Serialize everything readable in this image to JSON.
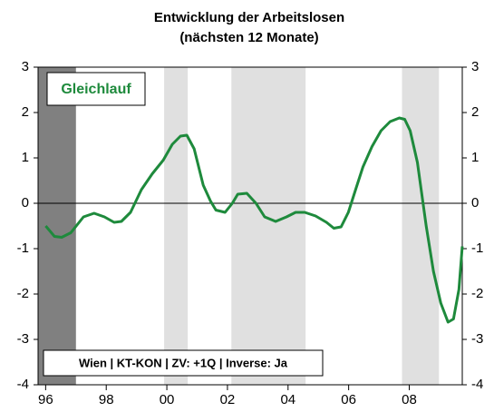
{
  "chart_data": {
    "type": "line",
    "title": "Entwicklung der Arbeitslosen",
    "subtitle": "(nächsten 12 Monate)",
    "annotations": [
      "Gleichlauf",
      "Wien | KT-KON | ZV: +1Q | Inverse: Ja"
    ],
    "xlim": [
      1995.75,
      2009.75
    ],
    "xticks": [
      {
        "value": 1996,
        "label": "96"
      },
      {
        "value": 1998,
        "label": "98"
      },
      {
        "value": 2000,
        "label": "00"
      },
      {
        "value": 2002,
        "label": "02"
      },
      {
        "value": 2004,
        "label": "04"
      },
      {
        "value": 2006,
        "label": "06"
      },
      {
        "value": 2008,
        "label": "08"
      }
    ],
    "ylim": [
      -4,
      3
    ],
    "yticks": [
      -4,
      -3,
      -2,
      -1,
      0,
      1,
      2,
      3
    ],
    "y2lim": [
      -4,
      3
    ],
    "y2ticks": [
      -4,
      -3,
      -2,
      -1,
      0,
      1,
      2,
      3
    ],
    "shaded_periods": [
      {
        "start": 1995.75,
        "end": 1997.0,
        "color": "#808080"
      },
      {
        "start": 1999.91,
        "end": 2000.69,
        "color": "#e0e0e0"
      },
      {
        "start": 2002.13,
        "end": 2004.58,
        "color": "#e0e0e0"
      },
      {
        "start": 2007.76,
        "end": 2008.98,
        "color": "#e0e0e0"
      }
    ],
    "series": [
      {
        "color": "#1e8a3c",
        "x": [
          1996.0,
          1996.29,
          1996.53,
          1996.83,
          1997.25,
          1997.6,
          1997.94,
          1998.26,
          1998.5,
          1998.8,
          1999.16,
          1999.52,
          1999.88,
          2000.18,
          2000.45,
          2000.66,
          2000.9,
          2001.2,
          2001.44,
          2001.62,
          2001.92,
          2002.16,
          2002.34,
          2002.64,
          2002.94,
          2003.23,
          2003.59,
          2003.95,
          2004.25,
          2004.55,
          2004.91,
          2005.27,
          2005.51,
          2005.75,
          2005.99,
          2006.23,
          2006.47,
          2006.77,
          2007.07,
          2007.37,
          2007.67,
          2007.85,
          2008.03,
          2008.27,
          2008.56,
          2008.8,
          2009.04,
          2009.28,
          2009.46,
          2009.64,
          2009.75
        ],
        "values": [
          -0.5,
          -0.73,
          -0.75,
          -0.65,
          -0.3,
          -0.22,
          -0.3,
          -0.42,
          -0.4,
          -0.2,
          0.3,
          0.65,
          0.95,
          1.3,
          1.48,
          1.5,
          1.2,
          0.4,
          0.05,
          -0.15,
          -0.2,
          0.0,
          0.2,
          0.22,
          0.0,
          -0.3,
          -0.4,
          -0.3,
          -0.2,
          -0.2,
          -0.28,
          -0.42,
          -0.55,
          -0.52,
          -0.2,
          0.3,
          0.8,
          1.25,
          1.6,
          1.8,
          1.88,
          1.85,
          1.6,
          0.9,
          -0.5,
          -1.5,
          -2.2,
          -2.62,
          -2.55,
          -1.9,
          -0.95
        ]
      }
    ]
  }
}
